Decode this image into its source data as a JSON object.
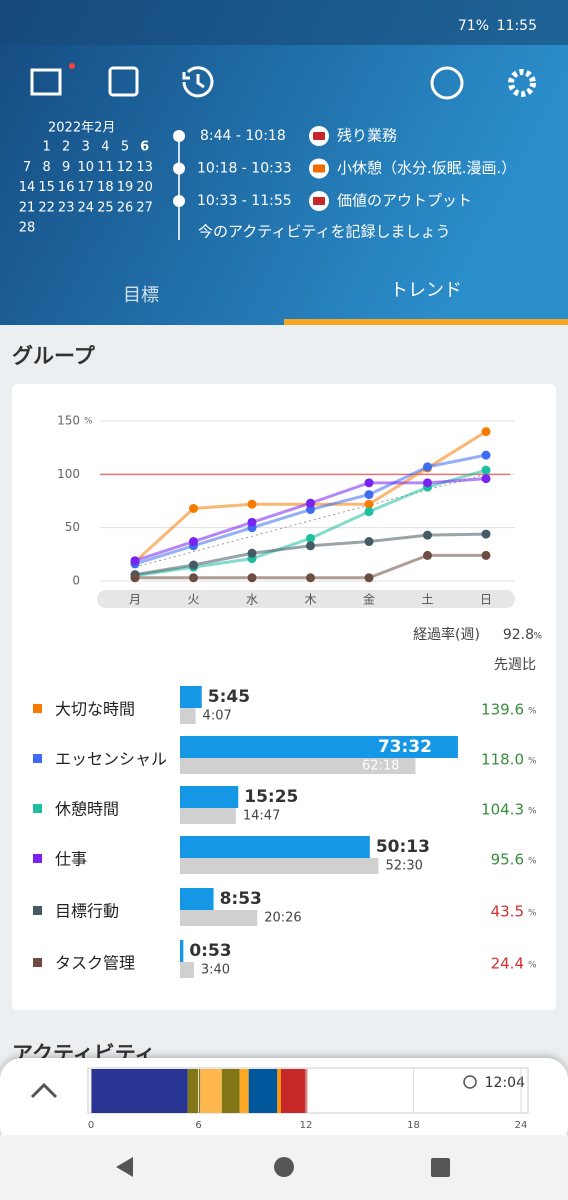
{
  "status_bar": {
    "battery": "71%",
    "time": "11:55"
  },
  "calendar": {
    "month": "2022年2月",
    "today": 6,
    "weeks": [
      [
        null,
        1,
        2,
        3,
        4,
        5,
        6
      ],
      [
        7,
        8,
        9,
        10,
        11,
        12,
        13
      ],
      [
        14,
        15,
        16,
        17,
        18,
        19,
        20
      ],
      [
        21,
        22,
        23,
        24,
        25,
        26,
        27
      ],
      [
        28
      ]
    ]
  },
  "timeline": [
    {
      "time": "8:44 - 10:18",
      "label": "残り業務",
      "color": "#c62828"
    },
    {
      "time": "10:18 - 10:33",
      "label": "小休憩（水分.仮眠.漫画.）",
      "color": "#ef6c00"
    },
    {
      "time": "10:33 - 11:55",
      "label": "価値のアウトプット",
      "color": "#c62828"
    }
  ],
  "timeline_prompt": "今のアクティビティを記録しましょう",
  "tabs": [
    "目標",
    "トレンド"
  ],
  "active_tab": 1,
  "section_title": "グループ",
  "chart_data": {
    "type": "line",
    "categories": [
      "月",
      "火",
      "水",
      "木",
      "金",
      "土",
      "日"
    ],
    "yunit": "%",
    "ylim": [
      0,
      150
    ],
    "yticks": [
      0,
      50,
      100,
      150
    ],
    "grid": true,
    "reference_line": 100,
    "reference_color": "#e57373",
    "trend_line": [
      13,
      100
    ],
    "series": [
      {
        "name": "大切な時間",
        "color": "#f57c00",
        "values": [
          18,
          68,
          72,
          72,
          72,
          106,
          140
        ]
      },
      {
        "name": "エッセンシャル",
        "color": "#3d6cf0",
        "values": [
          16,
          33,
          50,
          67,
          81,
          107,
          118
        ]
      },
      {
        "name": "休憩時間",
        "color": "#1dbf9f",
        "values": [
          5,
          13,
          21,
          40,
          65,
          88,
          104
        ]
      },
      {
        "name": "仕事",
        "color": "#7a22f0",
        "values": [
          19,
          37,
          55,
          73,
          92,
          92,
          96
        ]
      },
      {
        "name": "目標行動",
        "color": "#455a64",
        "values": [
          6,
          15,
          26,
          33,
          37,
          43,
          44
        ]
      },
      {
        "name": "タスク管理",
        "color": "#6d4c41",
        "values": [
          3,
          3,
          3,
          3,
          3,
          24,
          24
        ]
      }
    ]
  },
  "progress_label": "経過率(週)",
  "progress": 92.8,
  "progress_unit": "%",
  "compare_label": "先週比",
  "groups": [
    {
      "this_week": "5:45",
      "last_week": "4:07",
      "ratio": 139.6,
      "ratio_color": "#388e3c"
    },
    {
      "this_week": "73:32",
      "last_week": "62:18",
      "ratio": 118.0,
      "ratio_label": "118.0",
      "ratio_color": "#388e3c"
    },
    {
      "this_week": "15:25",
      "last_week": "14:47",
      "ratio": 104.3,
      "ratio_color": "#388e3c"
    },
    {
      "this_week": "50:13",
      "last_week": "52:30",
      "ratio": 95.6,
      "ratio_color": "#388e3c"
    },
    {
      "this_week": "8:53",
      "last_week": "20:26",
      "ratio": 43.5,
      "ratio_color": "#d32f2f"
    },
    {
      "this_week": "0:53",
      "last_week": "3:40",
      "ratio": 24.4,
      "ratio_color": "#d32f2f"
    }
  ],
  "ratio_unit": "%",
  "next_section": "アクティビティ",
  "day_timeline": {
    "type": "timeline",
    "xlim": [
      0,
      24
    ],
    "xticks": [
      0,
      6,
      12,
      18,
      24
    ],
    "now": "12:04",
    "segments": [
      {
        "start": 0,
        "end": 5.4,
        "color": "#283593"
      },
      {
        "start": 5.4,
        "end": 6.1,
        "color": "#827717"
      },
      {
        "start": 6.1,
        "end": 7.3,
        "color": "#ffb74d"
      },
      {
        "start": 7.3,
        "end": 8.3,
        "color": "#827717"
      },
      {
        "start": 8.3,
        "end": 8.8,
        "color": "#ffa726"
      },
      {
        "start": 8.8,
        "end": 10.4,
        "color": "#01579b"
      },
      {
        "start": 10.4,
        "end": 10.6,
        "color": "#ff9800"
      },
      {
        "start": 10.6,
        "end": 12.07,
        "color": "#c62828"
      }
    ]
  }
}
